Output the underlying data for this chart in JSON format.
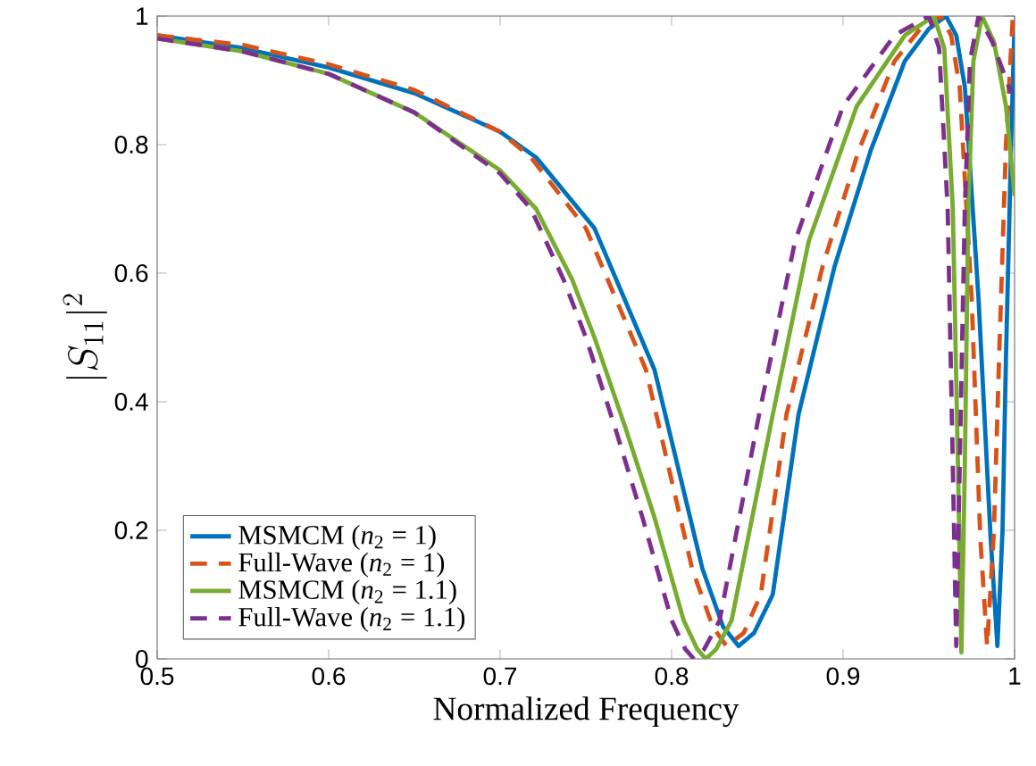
{
  "chart_data": {
    "type": "line",
    "xlabel": "Normalized Frequency",
    "ylabel": "|S_{11}|^2",
    "xlim": [
      0.5,
      1
    ],
    "ylim": [
      0,
      1
    ],
    "xticks": [
      0.5,
      0.6,
      0.7,
      0.8,
      0.9,
      1
    ],
    "yticks": [
      0,
      0.2,
      0.4,
      0.6,
      0.8,
      1
    ],
    "grid": false,
    "legend": "bottom left",
    "marker": "none",
    "series": [
      {
        "name": "MSMCM (*n*$_{2}$ = 1)",
        "color": "#0072bd",
        "line_style": "solid",
        "x": [
          0.5,
          0.55,
          0.6,
          0.65,
          0.7,
          0.721,
          0.755,
          0.79,
          0.818,
          0.83,
          0.839,
          0.848,
          0.859,
          0.874,
          0.895,
          0.916,
          0.936,
          0.95,
          0.96,
          0.966,
          0.971,
          0.979,
          0.986,
          0.99,
          0.993,
          0.995,
          0.998,
          1.0
        ],
        "values": [
          0.97,
          0.95,
          0.92,
          0.88,
          0.82,
          0.78,
          0.67,
          0.45,
          0.14,
          0.05,
          0.02,
          0.04,
          0.1,
          0.38,
          0.61,
          0.79,
          0.93,
          0.98,
          1.0,
          0.97,
          0.89,
          0.56,
          0.19,
          0.02,
          0.2,
          0.47,
          0.8,
          0.99
        ]
      },
      {
        "name": "Full-Wave (*n*$_{2}$ = 1)",
        "color": "#d95319",
        "line_style": "dashed",
        "x": [
          0.5,
          0.55,
          0.6,
          0.65,
          0.7,
          0.718,
          0.75,
          0.785,
          0.812,
          0.824,
          0.832,
          0.842,
          0.852,
          0.867,
          0.888,
          0.909,
          0.93,
          0.945,
          0.957,
          0.963,
          0.968,
          0.975,
          0.98,
          0.984,
          0.988,
          0.991,
          0.995,
          0.999
        ],
        "values": [
          0.97,
          0.955,
          0.925,
          0.885,
          0.82,
          0.78,
          0.67,
          0.45,
          0.14,
          0.05,
          0.02,
          0.04,
          0.1,
          0.38,
          0.61,
          0.79,
          0.93,
          0.98,
          1.0,
          0.97,
          0.89,
          0.56,
          0.19,
          0.02,
          0.2,
          0.47,
          0.8,
          1.0
        ]
      },
      {
        "name": "MSMCM (*n*$_{2}$ = 1.1)",
        "color": "#77ac30",
        "line_style": "solid",
        "x": [
          0.5,
          0.55,
          0.6,
          0.65,
          0.7,
          0.721,
          0.742,
          0.755,
          0.773,
          0.79,
          0.807,
          0.815,
          0.82,
          0.826,
          0.835,
          0.859,
          0.88,
          0.908,
          0.936,
          0.953,
          0.959,
          0.964,
          0.967,
          0.969,
          0.971,
          0.973,
          0.976,
          0.981,
          0.988,
          0.995,
          1.0
        ],
        "values": [
          0.965,
          0.945,
          0.91,
          0.85,
          0.76,
          0.7,
          0.59,
          0.5,
          0.36,
          0.22,
          0.06,
          0.015,
          0.0,
          0.015,
          0.06,
          0.38,
          0.65,
          0.86,
          0.97,
          1.0,
          0.95,
          0.7,
          0.3,
          0.01,
          0.3,
          0.7,
          0.93,
          1.0,
          0.96,
          0.86,
          0.72
        ]
      },
      {
        "name": "Full-Wave (*n*$_{2}$ = 1.1)",
        "color": "#7e2f8e",
        "line_style": "dashed",
        "x": [
          0.5,
          0.55,
          0.6,
          0.65,
          0.7,
          0.718,
          0.737,
          0.75,
          0.767,
          0.783,
          0.8,
          0.808,
          0.813,
          0.819,
          0.828,
          0.851,
          0.872,
          0.9,
          0.93,
          0.95,
          0.956,
          0.961,
          0.964,
          0.966,
          0.968,
          0.971,
          0.974,
          0.979,
          0.987,
          0.998
        ],
        "values": [
          0.965,
          0.945,
          0.91,
          0.85,
          0.755,
          0.7,
          0.59,
          0.5,
          0.36,
          0.22,
          0.06,
          0.015,
          0.0,
          0.015,
          0.06,
          0.38,
          0.65,
          0.86,
          0.97,
          1.0,
          0.95,
          0.7,
          0.3,
          0.02,
          0.3,
          0.7,
          0.93,
          1.0,
          0.96,
          0.88
        ]
      }
    ]
  }
}
